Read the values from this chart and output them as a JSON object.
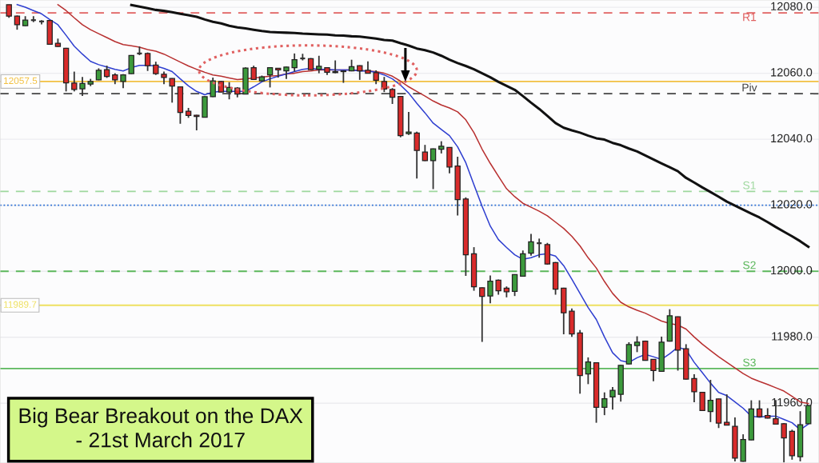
{
  "chart_data": {
    "type": "candlestick",
    "title": "Big Bear Breakout on the DAX\n- 21st March 2017",
    "categories": [
      null,
      null,
      null,
      null,
      null,
      null,
      null,
      null,
      null,
      null,
      null,
      null,
      null,
      null,
      null,
      null,
      null,
      null,
      null,
      null,
      null,
      null,
      null,
      null,
      null,
      null,
      null,
      null,
      null,
      null,
      null,
      null,
      null,
      null,
      null,
      null,
      null,
      null,
      null,
      null,
      null,
      null,
      null,
      null,
      null,
      null,
      null,
      null,
      null,
      null,
      null,
      null,
      null,
      null,
      null,
      null,
      null,
      null,
      null,
      null,
      null,
      null,
      null,
      null,
      null,
      null,
      null,
      null,
      null,
      null,
      null,
      null,
      null,
      null,
      null,
      null,
      null,
      null,
      null,
      null,
      null,
      null,
      null,
      null,
      null,
      null,
      null,
      null,
      null,
      null,
      null,
      null,
      null,
      null,
      null,
      null,
      null,
      null,
      null
    ],
    "ohlc": [
      [
        12080.8,
        12080.8,
        12076.8,
        12077.3
      ],
      [
        12077.3,
        12077.5,
        12073.2,
        12074.7
      ],
      [
        12074.4,
        12077.3,
        12074.3,
        12076.1
      ],
      [
        12076.1,
        12077.3,
        12075.5,
        12076.1
      ],
      [
        12075.7,
        12076.1,
        12074.8,
        12075.7
      ],
      [
        12076.0,
        12076.1,
        12068.8,
        12068.8
      ],
      [
        12069.1,
        12070.5,
        12068.0,
        12068.1
      ],
      [
        12067.6,
        12067.7,
        12054.5,
        12057.1
      ],
      [
        12057.0,
        12060.5,
        12054.5,
        12055.1
      ],
      [
        12055.3,
        12058.9,
        12053.1,
        12056.9
      ],
      [
        12056.7,
        12058.3,
        12056.1,
        12057.5
      ],
      [
        12058.0,
        12061.5,
        12057.9,
        12060.9
      ],
      [
        12061.1,
        12062.3,
        12058.6,
        12059.0
      ],
      [
        12059.5,
        12060.0,
        12056.7,
        12058.0
      ],
      [
        12057.5,
        12059.7,
        12055.5,
        12059.5
      ],
      [
        12059.9,
        12065.5,
        12059.8,
        12065.4
      ],
      [
        12066.0,
        12068.1,
        12065.5,
        12066.0
      ],
      [
        12066.0,
        12066.3,
        12060.7,
        12062.3
      ],
      [
        12062.5,
        12063.5,
        12059.5,
        12059.9
      ],
      [
        12059.7,
        12060.5,
        12056.7,
        12058.7
      ],
      [
        12058.4,
        12058.5,
        12051.1,
        12056.1
      ],
      [
        12055.9,
        12056.0,
        12044.7,
        12048.1
      ],
      [
        12048.5,
        12049.5,
        12046.5,
        12047.2
      ],
      [
        12047.3,
        12047.4,
        12042.7,
        12046.9
      ],
      [
        12046.7,
        12053.0,
        12046.6,
        12052.9
      ],
      [
        12052.9,
        12058.7,
        12052.8,
        12057.7
      ],
      [
        12057.5,
        12057.7,
        12054.2,
        12054.3
      ],
      [
        12054.3,
        12057.3,
        12052.1,
        12055.7
      ],
      [
        12055.5,
        12055.8,
        12052.7,
        12053.7
      ],
      [
        12053.7,
        12061.8,
        12053.6,
        12061.6
      ],
      [
        12061.7,
        12062.3,
        12058.0,
        12058.1
      ],
      [
        12057.7,
        12059.3,
        12057.5,
        12058.9
      ],
      [
        12059.5,
        12061.8,
        12055.7,
        12061.7
      ],
      [
        12061.5,
        12061.6,
        12058.7,
        12061.0
      ],
      [
        12060.7,
        12062.0,
        12058.3,
        12061.9
      ],
      [
        12061.7,
        12066.0,
        12060.5,
        12064.1
      ],
      [
        12064.5,
        12065.9,
        12063.9,
        12064.5
      ],
      [
        12064.4,
        12064.6,
        12061.0,
        12061.1
      ],
      [
        12061.2,
        12065.3,
        12060.0,
        12062.1
      ],
      [
        12061.7,
        12061.8,
        12059.5,
        12060.3
      ],
      [
        12060.5,
        12063.9,
        12060.0,
        12060.2
      ],
      [
        12060.7,
        12060.8,
        12057.1,
        12060.5
      ],
      [
        12060.7,
        12064.1,
        12060.6,
        12062.0
      ],
      [
        12062.3,
        12062.4,
        12058.0,
        12060.7
      ],
      [
        12060.9,
        12063.6,
        12059.9,
        12060.0
      ],
      [
        12060.2,
        12060.9,
        12056.7,
        12057.9
      ],
      [
        12057.5,
        12058.9,
        12054.3,
        12055.2
      ],
      [
        12055.1,
        12055.5,
        12050.7,
        12052.7
      ],
      [
        12053.0,
        12053.1,
        12040.6,
        12041.1
      ],
      [
        12041.7,
        12048.3,
        12041.3,
        12042.2
      ],
      [
        12041.9,
        12042.3,
        12028.1,
        12036.6
      ],
      [
        12036.1,
        12038.3,
        12033.4,
        12033.5
      ],
      [
        12033.5,
        12037.2,
        12024.9,
        12037.1
      ],
      [
        12037.0,
        12039.4,
        12035.7,
        12037.9
      ],
      [
        12037.5,
        12037.6,
        12029.7,
        12031.6
      ],
      [
        12031.9,
        12034.7,
        12016.9,
        12021.7
      ],
      [
        12021.9,
        12022.4,
        11998.6,
        12005.0
      ],
      [
        12005.3,
        12007.3,
        11994.1,
        11995.3
      ],
      [
        11995.0,
        11995.1,
        11978.6,
        11992.4
      ],
      [
        11992.5,
        11998.7,
        11990.3,
        11997.0
      ],
      [
        11997.3,
        11997.5,
        11992.9,
        11994.1
      ],
      [
        11994.9,
        11995.4,
        11992.1,
        11993.8
      ],
      [
        11993.9,
        11999.1,
        11992.5,
        11999.0
      ],
      [
        11998.5,
        12006.3,
        11998.4,
        12005.3
      ],
      [
        12005.5,
        12011.3,
        12004.7,
        12008.9
      ],
      [
        12008.5,
        12009.9,
        12004.1,
        12008.5
      ],
      [
        12008.1,
        12008.6,
        12002.0,
        12002.2
      ],
      [
        12002.6,
        12002.8,
        11992.9,
        11994.6
      ],
      [
        11994.9,
        11995.0,
        11980.9,
        11987.4
      ],
      [
        11987.9,
        11988.7,
        11980.1,
        11981.0
      ],
      [
        11981.3,
        11982.2,
        11962.9,
        11968.4
      ],
      [
        11968.9,
        11973.9,
        11965.8,
        11972.5
      ],
      [
        11972.3,
        11972.4,
        11954.1,
        11958.8
      ],
      [
        11958.8,
        11963.3,
        11956.4,
        11961.4
      ],
      [
        11961.9,
        11964.9,
        11958.1,
        11963.9
      ],
      [
        11962.7,
        11971.6,
        11960.5,
        11971.5
      ],
      [
        11971.9,
        11978.5,
        11971.8,
        11977.8
      ],
      [
        11977.5,
        11980.3,
        11975.5,
        11978.5
      ],
      [
        11978.8,
        11979.0,
        11972.9,
        11973.0
      ],
      [
        11973.3,
        11973.4,
        11966.7,
        11969.9
      ],
      [
        11969.7,
        11980.2,
        11969.6,
        11978.5
      ],
      [
        11978.8,
        11988.5,
        11978.7,
        11986.5
      ],
      [
        11986.2,
        11986.3,
        11969.9,
        11976.1
      ],
      [
        11976.5,
        11977.9,
        11967.2,
        11967.3
      ],
      [
        11967.5,
        11968.8,
        11960.3,
        11963.5
      ],
      [
        11963.3,
        11963.4,
        11957.7,
        11957.8
      ],
      [
        11957.5,
        11967.1,
        11954.3,
        11960.9
      ],
      [
        11961.3,
        11961.4,
        11952.5,
        11954.0
      ],
      [
        11954.2,
        11962.7,
        11953.3,
        11953.4
      ],
      [
        11953.0,
        11955.7,
        11942.4,
        11943.4
      ],
      [
        11942.4,
        11950.6,
        11942.3,
        11949.0
      ],
      [
        11948.9,
        11960.9,
        11948.8,
        11958.3
      ],
      [
        11958.3,
        11960.9,
        11955.8,
        11955.9
      ],
      [
        11956.3,
        11958.5,
        11955.4,
        11955.5
      ],
      [
        11955.3,
        11961.0,
        11953.6,
        11953.7
      ],
      [
        11953.8,
        11954.0,
        11942.1,
        11949.5
      ],
      [
        11951.5,
        11952.0,
        11942.9,
        11944.1
      ],
      [
        11943.8,
        11957.6,
        11942.4,
        11953.5
      ],
      [
        11953.8,
        11959.4,
        11953.7,
        11959.3
      ]
    ],
    "colors": [
      "#d92b2b",
      "#d92b2b",
      "#3c9a3c",
      "#333333",
      "#333333",
      "#d92b2b",
      "#d92b2b",
      "#d92b2b",
      "#d92b2b",
      "#3c9a3c",
      "#3c9a3c",
      "#3c9a3c",
      "#d92b2b",
      "#d92b2b",
      "#3c9a3c",
      "#3c9a3c",
      "#333333",
      "#d92b2b",
      "#d92b2b",
      "#d92b2b",
      "#d92b2b",
      "#d92b2b",
      "#d92b2b",
      "#d92b2b",
      "#3c9a3c",
      "#3c9a3c",
      "#d92b2b",
      "#3c9a3c",
      "#d92b2b",
      "#3c9a3c",
      "#d92b2b",
      "#3c9a3c",
      "#3c9a3c",
      "#d92b2b",
      "#3c9a3c",
      "#3c9a3c",
      "#333333",
      "#d92b2b",
      "#3c9a3c",
      "#d92b2b",
      "#d92b2b",
      "#d92b2b",
      "#3c9a3c",
      "#d92b2b",
      "#d92b2b",
      "#d92b2b",
      "#d92b2b",
      "#d92b2b",
      "#d92b2b",
      "#3c9a3c",
      "#d92b2b",
      "#d92b2b",
      "#3c9a3c",
      "#3c9a3c",
      "#d92b2b",
      "#d92b2b",
      "#d92b2b",
      "#d92b2b",
      "#d92b2b",
      "#3c9a3c",
      "#d92b2b",
      "#d92b2b",
      "#3c9a3c",
      "#3c9a3c",
      "#3c9a3c",
      "#333333",
      "#d92b2b",
      "#d92b2b",
      "#d92b2b",
      "#d92b2b",
      "#d92b2b",
      "#3c9a3c",
      "#d92b2b",
      "#3c9a3c",
      "#3c9a3c",
      "#3c9a3c",
      "#3c9a3c",
      "#3c9a3c",
      "#d92b2b",
      "#d92b2b",
      "#3c9a3c",
      "#3c9a3c",
      "#d92b2b",
      "#d92b2b",
      "#d92b2b",
      "#d92b2b",
      "#3c9a3c",
      "#d92b2b",
      "#d92b2b",
      "#d92b2b",
      "#3c9a3c",
      "#3c9a3c",
      "#d92b2b",
      "#d92b2b",
      "#d92b2b",
      "#d92b2b",
      "#d92b2b",
      "#3c9a3c",
      "#3c9a3c"
    ],
    "series": [
      {
        "type": "line",
        "color": "#111111",
        "values": [
          null,
          null,
          null,
          null,
          null,
          null,
          null,
          null,
          null,
          null,
          null,
          null,
          null,
          null,
          null,
          12080.7,
          12080.2,
          12079.7,
          12079.2,
          12078.9,
          12078.5,
          12078.0,
          12077.6,
          12077.1,
          12076.3,
          12075.6,
          12075.1,
          12074.4,
          12073.9,
          12073.6,
          12073.2,
          12072.8,
          12072.5,
          12072.4,
          12072.3,
          12072.2,
          12072.0,
          12071.9,
          12071.8,
          12071.7,
          12071.5,
          12071.4,
          12071.2,
          12071.1,
          12070.8,
          12070.5,
          12070.1,
          12069.9,
          12069.1,
          12068.4,
          12067.5,
          12067.0,
          12066.3,
          12065.3,
          12064.1,
          12063.1,
          12062.2,
          12061.2,
          12060.0,
          12058.8,
          12057.4,
          12056.2,
          12055.0,
          12053.1,
          12051.1,
          12049.2,
          12047.1,
          12044.9,
          12043.5,
          12042.7,
          12042.0,
          12041.1,
          12040.3,
          12039.9,
          12038.9,
          12038.2,
          12037.2,
          12036.3,
          12035.1,
          12033.9,
          12032.7,
          12031.5,
          12030.3,
          12028.3,
          12026.9,
          12025.4,
          12024.0,
          12022.6,
          12021.1,
          12019.9,
          12018.7,
          12017.5,
          12016.3,
          12014.9,
          12013.4,
          12012.0,
          12010.6,
          12009.1,
          12007.4
        ]
      },
      {
        "type": "line",
        "color": "#b83030",
        "values": [
          null,
          null,
          null,
          null,
          null,
          null,
          12080.8,
          12079.0,
          12076.8,
          12074.7,
          12073.2,
          12072.0,
          12070.8,
          12069.6,
          12068.7,
          12068.3,
          12067.9,
          12067.2,
          12066.7,
          12065.8,
          12064.6,
          12063.4,
          12062.2,
          12061.2,
          12060.3,
          12059.5,
          12059.1,
          12058.6,
          12058.1,
          12058.3,
          12058.6,
          12058.8,
          12059.1,
          12059.3,
          12059.8,
          12060.0,
          12060.5,
          12060.7,
          12061.0,
          12061.0,
          12061.0,
          12061.0,
          12061.0,
          12060.9,
          12060.7,
          12060.5,
          12060.0,
          12059.1,
          12057.6,
          12055.9,
          12054.5,
          12053.1,
          12051.6,
          12050.4,
          12049.5,
          12048.3,
          12045.9,
          12042.0,
          12037.0,
          12032.7,
          12028.8,
          12025.0,
          12022.6,
          12020.6,
          12019.4,
          12018.2,
          12016.8,
          12014.9,
          12013.0,
          12010.6,
          12007.7,
          12004.1,
          12001.0,
          11996.9,
          11993.3,
          11990.6,
          11989.2,
          11988.2,
          11987.3,
          11986.1,
          11984.9,
          11984.2,
          11983.7,
          11982.5,
          11980.1,
          11977.9,
          11976.0,
          11974.1,
          11972.4,
          11970.7,
          11969.0,
          11967.6,
          11966.6,
          11965.7,
          11964.7,
          11963.7,
          11962.1,
          11960.4,
          11959.9
        ]
      },
      {
        "type": "line",
        "color": "#2f3fd0",
        "values": [
          null,
          12080.8,
          12080.0,
          12079.0,
          12078.0,
          12076.3,
          12074.7,
          12071.5,
          12068.2,
          12065.8,
          12063.6,
          12062.6,
          12061.9,
          12061.2,
          12060.7,
          12061.7,
          12062.4,
          12062.4,
          12062.2,
          12061.5,
          12060.5,
          12058.3,
          12056.2,
          12054.5,
          12053.5,
          12054.3,
          12054.5,
          12054.5,
          12054.5,
          12054.5,
          12055.9,
          12057.4,
          12058.3,
          12059.1,
          12059.8,
          12060.5,
          12061.2,
          12061.5,
          12061.2,
          12061.2,
          12061.0,
          12061.0,
          12061.0,
          12060.7,
          12060.7,
          12060.3,
          12059.5,
          12058.3,
          12056.4,
          12054.0,
          12050.9,
          12048.0,
          12044.9,
          12043.0,
          12041.1,
          12037.7,
          12032.9,
          12026.2,
          12019.7,
          12013.7,
          12009.6,
          12007.2,
          12005.0,
          12003.6,
          12004.1,
          12005.0,
          12005.3,
          12004.6,
          12001.7,
          11997.6,
          11993.3,
          11989.0,
          11985.4,
          11980.1,
          11975.3,
          11972.9,
          11972.4,
          11973.8,
          11974.8,
          11974.1,
          11973.3,
          11975.0,
          11977.0,
          11976.2,
          11972.4,
          11969.3,
          11966.1,
          11963.3,
          11962.3,
          11960.4,
          11958.5,
          11956.1,
          11955.8,
          11956.1,
          11956.1,
          11955.1,
          11954.1,
          11952.0,
          11953.7
        ]
      }
    ],
    "ylim": [
      11941.9,
      12082.2
    ],
    "yticks": [
      {
        "value": 12080,
        "label": "12080.0"
      },
      {
        "value": 12060,
        "label": "12060.0"
      },
      {
        "value": 12040,
        "label": "12040.0"
      },
      {
        "value": 12020,
        "label": "12020.0"
      },
      {
        "value": 12000,
        "label": "12000.0"
      },
      {
        "value": 11980,
        "label": "11980.0"
      },
      {
        "value": 11960,
        "label": "11960.0"
      }
    ],
    "tick_labels": "y",
    "grid": "y",
    "ref_lines": [
      {
        "axis": "y",
        "value": 12078.3,
        "label": "R1",
        "color": "#e06060",
        "line_style": "dashed"
      },
      {
        "axis": "y",
        "value": 12057.5,
        "label": "12057.5",
        "color": "#f2c040",
        "line_style": "solid"
      },
      {
        "axis": "y",
        "value": 12053.8,
        "label": "Piv",
        "color": "#444444",
        "line_style": "dashed"
      },
      {
        "axis": "y",
        "value": 12024.2,
        "label": "S1",
        "color": "#9ed89e",
        "line_style": "dashed"
      },
      {
        "axis": "y",
        "value": 12020,
        "color": "#2a6fd6",
        "line_style": "dotted"
      },
      {
        "axis": "y",
        "value": 12000,
        "label": "S2",
        "color": "#5cb85c",
        "line_style": "dashed"
      },
      {
        "axis": "y",
        "value": 11989.7,
        "label": "11989.7",
        "color": "#eee060",
        "line_style": "solid"
      },
      {
        "axis": "y",
        "value": 11970.5,
        "label": "S3",
        "color": "#5cb85c",
        "line_style": "solid"
      }
    ]
  }
}
